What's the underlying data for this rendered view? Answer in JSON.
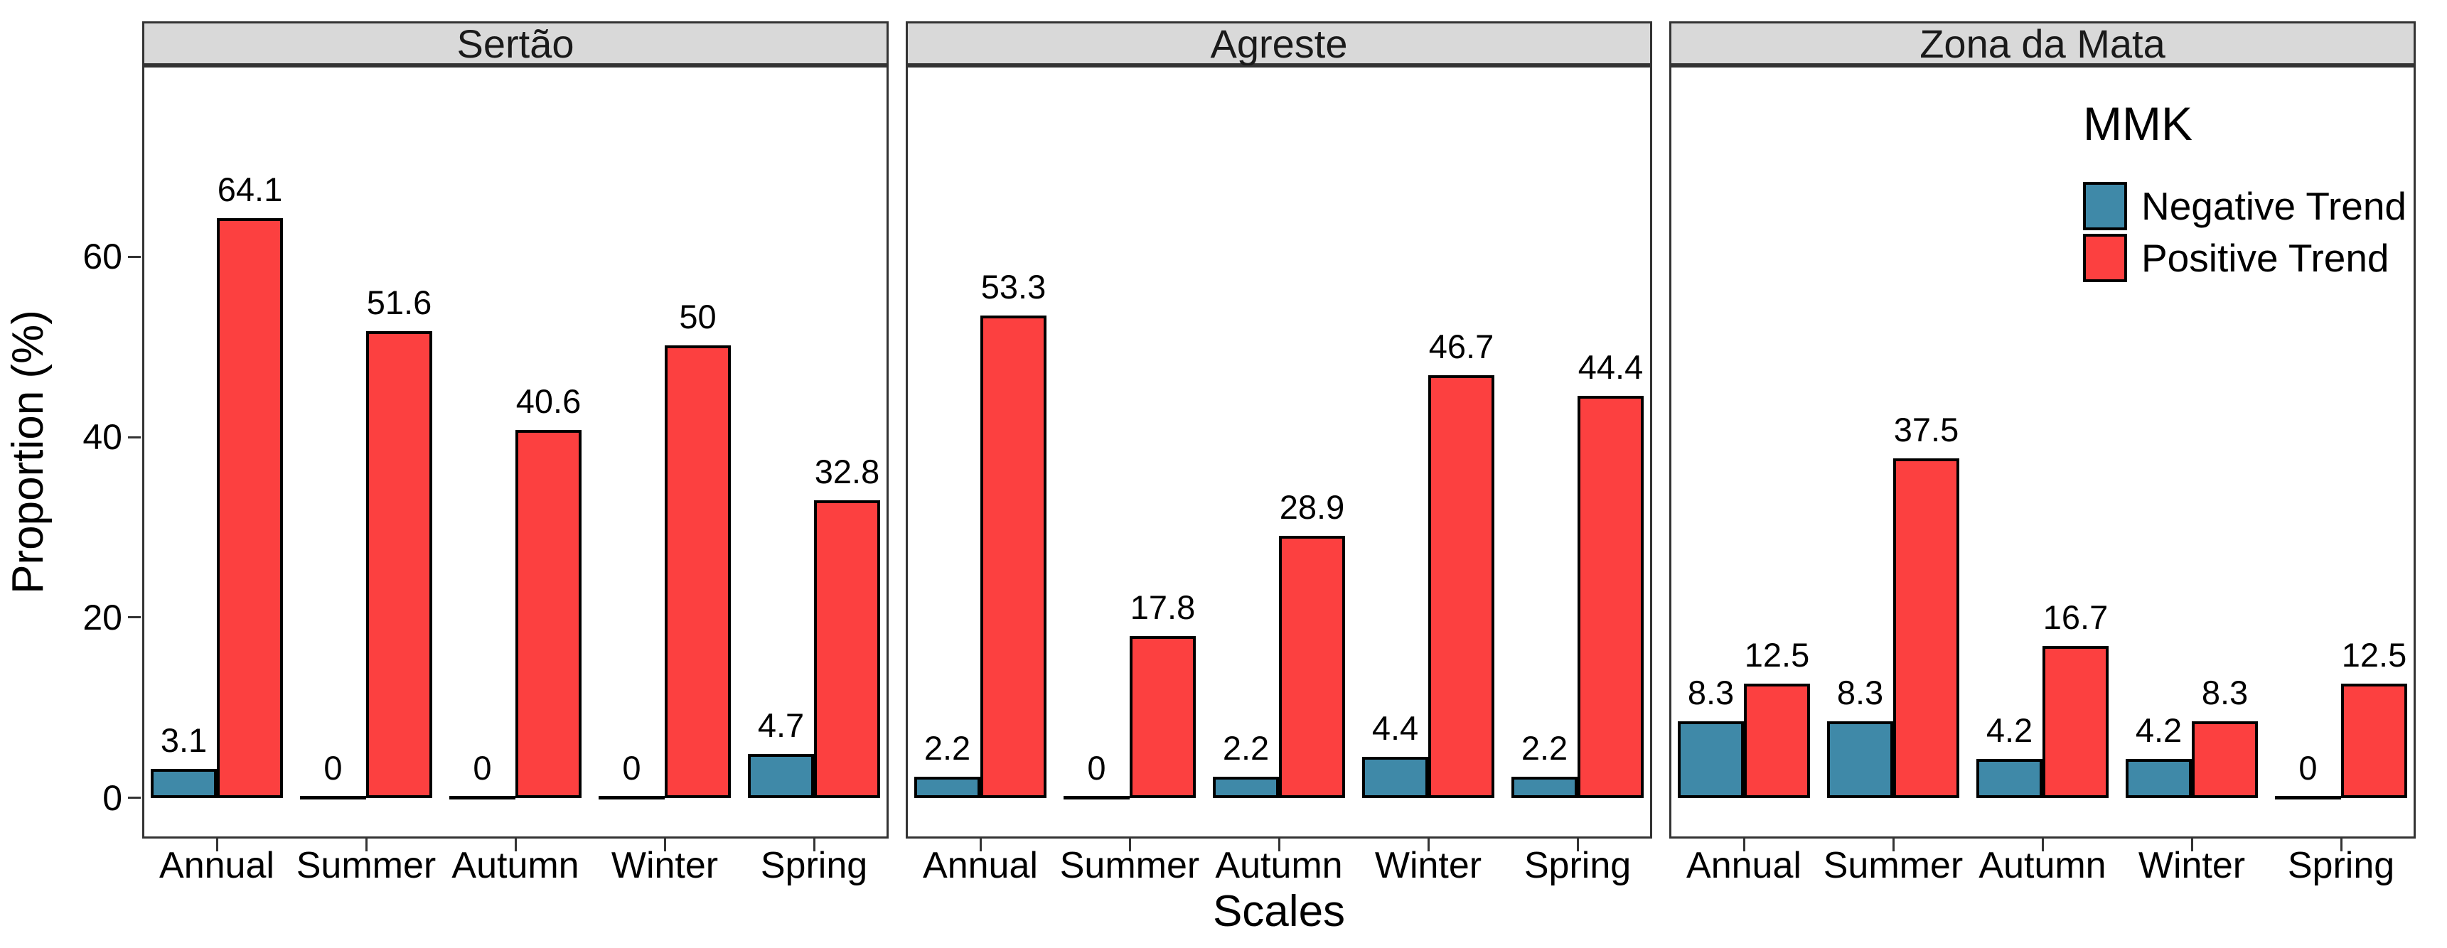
{
  "chart_data": {
    "type": "bar",
    "title": "",
    "xlabel": "Scales",
    "ylabel": "Proportion (%)",
    "categories": [
      "Annual",
      "Summer",
      "Autumn",
      "Winter",
      "Spring"
    ],
    "yticks": [
      "0",
      "20",
      "40",
      "60"
    ],
    "ytick_values": [
      0,
      20,
      40,
      60
    ],
    "ylim": [
      -4.5,
      81.2
    ],
    "grid": "off",
    "legend_position": "inside-top-right-of-third-panel",
    "facets": [
      {
        "name": "Sertão",
        "series": [
          {
            "name": "Negative Trend",
            "values": [
              3.1,
              0,
              0,
              0,
              4.7
            ],
            "labels": [
              "3.1",
              "0",
              "0",
              "0",
              "4.7"
            ]
          },
          {
            "name": "Positive Trend",
            "values": [
              64.1,
              51.6,
              40.6,
              50,
              32.8
            ],
            "labels": [
              "64.1",
              "51.6",
              "40.6",
              "50",
              "32.8"
            ]
          }
        ]
      },
      {
        "name": "Agreste",
        "series": [
          {
            "name": "Negative Trend",
            "values": [
              2.2,
              0,
              2.2,
              4.4,
              2.2
            ],
            "labels": [
              "2.2",
              "0",
              "2.2",
              "4.4",
              "2.2"
            ]
          },
          {
            "name": "Positive Trend",
            "values": [
              53.3,
              17.8,
              28.9,
              46.7,
              44.4
            ],
            "labels": [
              "53.3",
              "17.8",
              "28.9",
              "46.7",
              "44.4"
            ]
          }
        ]
      },
      {
        "name": "Zona da Mata",
        "series": [
          {
            "name": "Negative Trend",
            "values": [
              8.3,
              8.3,
              4.2,
              4.2,
              0
            ],
            "labels": [
              "8.3",
              "8.3",
              "4.2",
              "4.2",
              "0"
            ]
          },
          {
            "name": "Positive Trend",
            "values": [
              12.5,
              37.5,
              16.7,
              8.3,
              12.5
            ],
            "labels": [
              "12.5",
              "37.5",
              "16.7",
              "8.3",
              "12.5"
            ]
          }
        ]
      }
    ],
    "legend": {
      "title": "MMK",
      "entries": [
        {
          "label": "Negative Trend",
          "color": "#3f89a8"
        },
        {
          "label": "Positive Trend",
          "color": "#fc4040"
        }
      ]
    },
    "colors": {
      "negative_trend": "#3f89a8",
      "positive_trend": "#fc4040",
      "strip_fill": "#d9d9d9",
      "panel_border": "#333333",
      "bar_outline": "#000000",
      "background": "#ffffff"
    }
  }
}
